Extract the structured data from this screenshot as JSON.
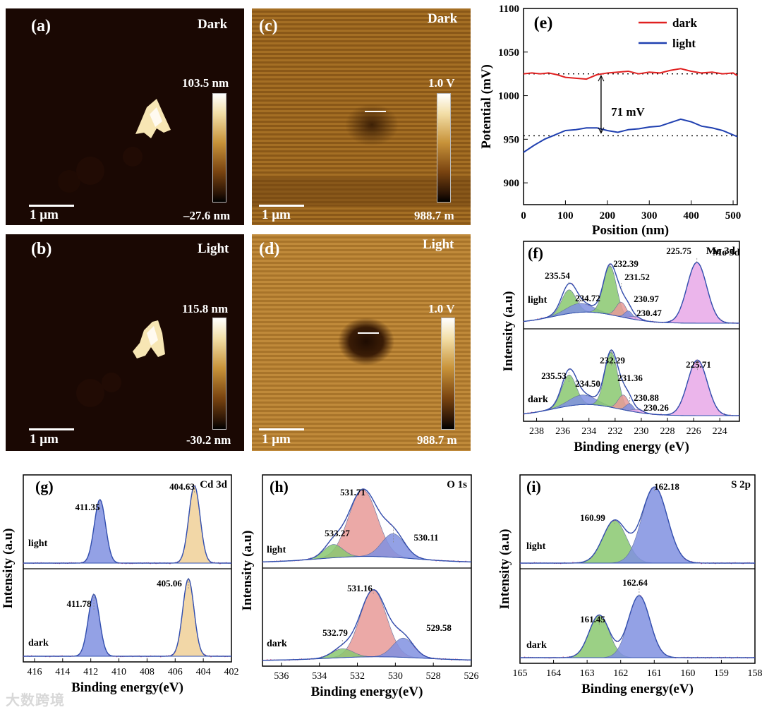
{
  "afm_panels": [
    {
      "id": "a",
      "label": "(a)",
      "condition": "Dark",
      "cb_max": "103.5 nm",
      "cb_min": "–27.6 nm",
      "scale": "1 μm"
    },
    {
      "id": "b",
      "label": "(b)",
      "condition": "Light",
      "cb_max": "115.8 nm",
      "cb_min": "-30.2 nm",
      "scale": "1 μm"
    },
    {
      "id": "c",
      "label": "(c)",
      "condition": "Dark",
      "cb_max": "1.0 V",
      "cb_min": "988.7 m",
      "scale": "1 μm"
    },
    {
      "id": "d",
      "label": "(d)",
      "condition": "Light",
      "cb_max": "1.0 V",
      "cb_min": "988.7 m",
      "scale": "1 μm"
    }
  ],
  "colors": {
    "dark_curve": "#e02020",
    "light_curve": "#2040b0",
    "green": "#8ac870",
    "blue": "#8090e0",
    "pink": "#e8a8e8",
    "red": "#e89a98",
    "orange": "#f0d098"
  },
  "chart_data": [
    {
      "id": "e",
      "type": "line",
      "label": "(e)",
      "xlabel": "Position (nm)",
      "ylabel": "Potential (mV)",
      "xlim": [
        0,
        510
      ],
      "ylim": [
        875,
        1100
      ],
      "xticks": [
        0,
        100,
        200,
        300,
        400,
        500
      ],
      "yticks": [
        900,
        950,
        1000,
        1050,
        1100
      ],
      "legend_position": "top-right",
      "annotation": "71 mV",
      "reference_lines": [
        1025,
        954
      ],
      "series": [
        {
          "name": "dark",
          "color": "#e02020",
          "x": [
            0,
            20,
            40,
            60,
            80,
            100,
            125,
            150,
            175,
            200,
            225,
            250,
            275,
            300,
            325,
            350,
            375,
            400,
            425,
            450,
            475,
            500,
            510
          ],
          "y": [
            1025,
            1026,
            1025,
            1026,
            1024,
            1021,
            1020,
            1019,
            1024,
            1026,
            1027,
            1028,
            1025,
            1027,
            1026,
            1029,
            1031,
            1028,
            1026,
            1027,
            1025,
            1026,
            1023
          ]
        },
        {
          "name": "light",
          "color": "#2040b0",
          "x": [
            0,
            25,
            50,
            75,
            100,
            125,
            150,
            175,
            200,
            225,
            250,
            275,
            300,
            325,
            350,
            375,
            400,
            425,
            450,
            475,
            500,
            510
          ],
          "y": [
            935,
            943,
            950,
            955,
            960,
            961,
            963,
            963,
            960,
            958,
            961,
            962,
            964,
            965,
            969,
            973,
            970,
            965,
            963,
            960,
            955,
            953
          ]
        }
      ]
    },
    {
      "id": "f",
      "type": "line",
      "label": "(f)",
      "element": "Mo 3d",
      "xlabel": "Binding energy (eV)",
      "ylabel": "Intensity (a.u)",
      "xlim": [
        239,
        222.5
      ],
      "xticks": [
        238,
        236,
        234,
        232,
        230,
        228,
        226,
        224
      ],
      "subplots": [
        {
          "condition": "light",
          "peaks": [
            "235.54",
            "234.72",
            "232.39",
            "231.52",
            "230.97",
            "230.47",
            "225.75"
          ]
        },
        {
          "condition": "dark",
          "peaks": [
            "235.53",
            "234.50",
            "232.29",
            "231.36",
            "230.88",
            "230.26",
            "225.71"
          ]
        }
      ]
    },
    {
      "id": "g",
      "type": "line",
      "label": "(g)",
      "element": "Cd 3d",
      "xlabel": "Binding energy(eV)",
      "ylabel": "Intensity (a.u)",
      "xlim": [
        416.8,
        402
      ],
      "xticks": [
        416,
        414,
        412,
        410,
        408,
        406,
        404,
        402
      ],
      "subplots": [
        {
          "condition": "light",
          "peaks": [
            "411.35",
            "404.63"
          ]
        },
        {
          "condition": "dark",
          "peaks": [
            "411.78",
            "405.06"
          ]
        }
      ]
    },
    {
      "id": "h",
      "type": "line",
      "label": "(h)",
      "element": "O 1s",
      "xlabel": "Binding energy(eV)",
      "ylabel": "Intensity (a.u)",
      "xlim": [
        537,
        526
      ],
      "xticks": [
        536,
        534,
        532,
        530,
        528,
        526
      ],
      "subplots": [
        {
          "condition": "light",
          "peaks": [
            "531.71",
            "533.27",
            "530.11"
          ]
        },
        {
          "condition": "dark",
          "peaks": [
            "531.16",
            "532.79",
            "529.58"
          ]
        }
      ]
    },
    {
      "id": "i",
      "type": "line",
      "label": "(i)",
      "element": "S 2p",
      "xlabel": "Binding energy(eV)",
      "ylabel": "Intensity (a.u)",
      "xlim": [
        165,
        158
      ],
      "xticks": [
        165,
        164,
        163,
        162,
        161,
        160,
        159,
        158
      ],
      "subplots": [
        {
          "condition": "light",
          "peaks": [
            "160.99",
            "162.18"
          ]
        },
        {
          "condition": "dark",
          "peaks": [
            "161.45",
            "162.64"
          ]
        }
      ]
    }
  ],
  "watermark": "大数跨境"
}
